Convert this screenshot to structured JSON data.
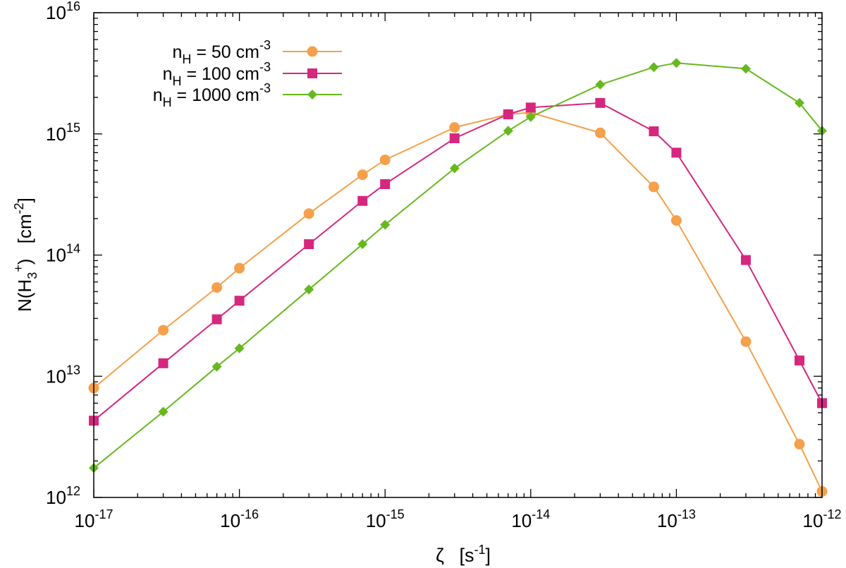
{
  "chart_data": {
    "type": "line",
    "xscale": "log",
    "yscale": "log",
    "xlim": [
      1e-17,
      1e-12
    ],
    "ylim": [
      1000000000000.0,
      1e+16
    ],
    "xticks": [
      {
        "value": 1e-17,
        "base": "10",
        "exp": "-17"
      },
      {
        "value": 1e-16,
        "base": "10",
        "exp": "-16"
      },
      {
        "value": 1e-15,
        "base": "10",
        "exp": "-15"
      },
      {
        "value": 1e-14,
        "base": "10",
        "exp": "-14"
      },
      {
        "value": 1e-13,
        "base": "10",
        "exp": "-13"
      },
      {
        "value": 1e-12,
        "base": "10",
        "exp": "-12"
      }
    ],
    "yticks": [
      {
        "value": 1000000000000.0,
        "base": "10",
        "exp": "12"
      },
      {
        "value": 10000000000000.0,
        "base": "10",
        "exp": "13"
      },
      {
        "value": 100000000000000.0,
        "base": "10",
        "exp": "14"
      },
      {
        "value": 1000000000000000.0,
        "base": "10",
        "exp": "15"
      },
      {
        "value": 1e+16,
        "base": "10",
        "exp": "16"
      }
    ],
    "xlabel": {
      "main": "ζ",
      "unit_open": "[s",
      "unit_exp": "-1",
      "unit_close": "]"
    },
    "ylabel": {
      "pre": "N(H",
      "sub": "3",
      "sup": "+",
      "post": ")",
      "unit_open": "[cm",
      "unit_exp": "-2",
      "unit_close": "]"
    },
    "legend_position": "top-left",
    "grid": false,
    "series": [
      {
        "label_pre": "n",
        "label_sub": "H",
        "label_mid": " =   50 cm",
        "label_sup": "-3",
        "color": "#f5a04a",
        "marker": "circle",
        "x": [
          1e-17,
          3e-17,
          7e-17,
          1e-16,
          3e-16,
          7e-16,
          1e-15,
          3e-15,
          7e-15,
          1e-14,
          3e-14,
          7e-14,
          1e-13,
          3e-13,
          7e-13,
          1e-12
        ],
        "y": [
          8000000000000.0,
          24000000000000.0,
          54000000000000.0,
          78000000000000.0,
          220000000000000.0,
          460000000000000.0,
          610000000000000.0,
          1130000000000000.0,
          1450000000000000.0,
          1500000000000000.0,
          1020000000000000.0,
          365000000000000.0,
          193000000000000.0,
          19300000000000.0,
          2750000000000.0,
          1120000000000.0
        ]
      },
      {
        "label_pre": "n",
        "label_sub": "H",
        "label_mid": " =  100 cm",
        "label_sup": "-3",
        "color": "#d6277e",
        "marker": "square",
        "x": [
          1e-17,
          3e-17,
          7e-17,
          1e-16,
          3e-16,
          7e-16,
          1e-15,
          3e-15,
          7e-15,
          1e-14,
          3e-14,
          7e-14,
          1e-13,
          3e-13,
          7e-13,
          1e-12
        ],
        "y": [
          4300000000000.0,
          12800000000000.0,
          29500000000000.0,
          42000000000000.0,
          123000000000000.0,
          280000000000000.0,
          385000000000000.0,
          920000000000000.0,
          1450000000000000.0,
          1650000000000000.0,
          1800000000000000.0,
          1050000000000000.0,
          700000000000000.0,
          91000000000000.0,
          13500000000000.0,
          6000000000000.0
        ]
      },
      {
        "label_pre": "n",
        "label_sub": "H",
        "label_mid": " = 1000 cm",
        "label_sup": "-3",
        "color": "#66b81e",
        "marker": "diamond",
        "x": [
          1e-17,
          3e-17,
          7e-17,
          1e-16,
          3e-16,
          7e-16,
          1e-15,
          3e-15,
          7e-15,
          1e-14,
          3e-14,
          7e-14,
          1e-13,
          3e-13,
          7e-13,
          1e-12
        ],
        "y": [
          1750000000000.0,
          5100000000000.0,
          12000000000000.0,
          17000000000000.0,
          52000000000000.0,
          123000000000000.0,
          178000000000000.0,
          520000000000000.0,
          1060000000000000.0,
          1380000000000000.0,
          2550000000000000.0,
          3550000000000000.0,
          3850000000000000.0,
          3450000000000000.0,
          1800000000000000.0,
          1060000000000000.0
        ]
      }
    ]
  }
}
